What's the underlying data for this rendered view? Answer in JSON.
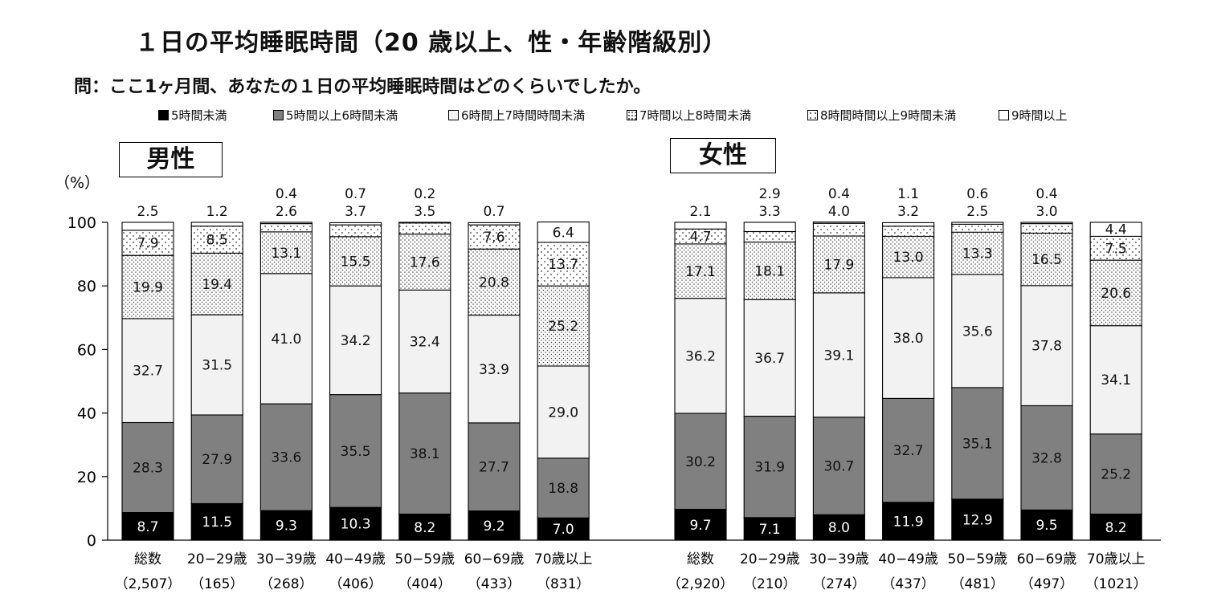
{
  "header": {
    "title": "１日の平均睡眠時間（20 歳以上、性・年齢階級別）",
    "question": "問：ここ1ヶ月間、あなたの１日の平均睡眠時間はどのくらいでしたか。"
  },
  "legend": [
    {
      "label": "5時間未満",
      "fill": "#000000",
      "pattern": "solid"
    },
    {
      "label": "5時間以上6時間未満",
      "fill": "#808080",
      "pattern": "solid"
    },
    {
      "label": "6時間上7時間時間未満",
      "fill": "#f2f2f2",
      "pattern": "solid"
    },
    {
      "label": "7時間以上8時間未満",
      "fill": "#ffffff",
      "pattern": "dots"
    },
    {
      "label": "8時間時間以上9時間未満",
      "fill": "#ffffff",
      "pattern": "sparse-dots"
    },
    {
      "label": "9時間以上",
      "fill": "#ffffff",
      "pattern": "solid"
    }
  ],
  "groups": {
    "male_label": "男性",
    "female_label": "女性"
  },
  "chart_data": {
    "type": "bar",
    "stacked": true,
    "ylabel": "（%）",
    "ylim": [
      0,
      100
    ],
    "yticks": [
      0,
      20,
      40,
      60,
      80,
      100
    ],
    "grid": false,
    "legend_position": "top",
    "series_names": [
      "5時間未満",
      "5時間以上6時間未満",
      "6時間上7時間時間未満",
      "7時間以上8時間未満",
      "8時間時間以上9時間未満",
      "9時間以上"
    ],
    "panels": [
      {
        "name": "男性",
        "categories": [
          {
            "label": "総数",
            "n": "（2,507）",
            "values": [
              8.7,
              28.3,
              32.7,
              19.9,
              7.9,
              2.5
            ]
          },
          {
            "label": "20−29歳",
            "n": "（165）",
            "values": [
              11.5,
              27.9,
              31.5,
              19.4,
              8.5,
              1.2
            ]
          },
          {
            "label": "30−39歳",
            "n": "（268）",
            "values": [
              9.3,
              33.6,
              41.0,
              13.1,
              2.6,
              0.4
            ]
          },
          {
            "label": "40−49歳",
            "n": "（406）",
            "values": [
              10.3,
              35.5,
              34.2,
              15.5,
              3.7,
              0.7
            ]
          },
          {
            "label": "50−59歳",
            "n": "（404）",
            "values": [
              8.2,
              38.1,
              32.4,
              17.6,
              3.5,
              0.2
            ]
          },
          {
            "label": "60−69歳",
            "n": "（433）",
            "values": [
              9.2,
              27.7,
              33.9,
              20.8,
              7.6,
              0.7
            ]
          },
          {
            "label": "70歳以上",
            "n": "（831）",
            "values": [
              7.0,
              18.8,
              29.0,
              25.2,
              13.7,
              6.4
            ]
          }
        ]
      },
      {
        "name": "女性",
        "categories": [
          {
            "label": "総数",
            "n": "（2,920）",
            "values": [
              9.7,
              30.2,
              36.2,
              17.1,
              4.7,
              2.1
            ]
          },
          {
            "label": "20−29歳",
            "n": "（210）",
            "values": [
              7.1,
              31.9,
              36.7,
              18.1,
              3.3,
              2.9
            ]
          },
          {
            "label": "30−39歳",
            "n": "（274）",
            "values": [
              8.0,
              30.7,
              39.1,
              17.9,
              4.0,
              0.4
            ]
          },
          {
            "label": "40−49歳",
            "n": "（437）",
            "values": [
              11.9,
              32.7,
              38.0,
              13.0,
              3.2,
              1.1
            ]
          },
          {
            "label": "50−59歳",
            "n": "（481）",
            "values": [
              12.9,
              35.1,
              35.6,
              13.3,
              2.5,
              0.6
            ]
          },
          {
            "label": "60−69歳",
            "n": "（497）",
            "values": [
              9.5,
              32.8,
              37.8,
              16.5,
              3.0,
              0.4
            ]
          },
          {
            "label": "70歳以上",
            "n": "（1021）",
            "values": [
              8.2,
              25.2,
              34.1,
              20.6,
              7.5,
              4.4
            ]
          }
        ]
      }
    ]
  }
}
